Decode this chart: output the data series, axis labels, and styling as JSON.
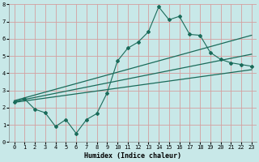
{
  "title": "",
  "xlabel": "Humidex (Indice chaleur)",
  "ylabel": "",
  "bg_color": "#c8e8e8",
  "line_color": "#1a6b5a",
  "grid_color": "#d4a0a0",
  "xlim": [
    -0.5,
    23.5
  ],
  "ylim": [
    0,
    8
  ],
  "xticks": [
    0,
    1,
    2,
    3,
    4,
    5,
    6,
    7,
    8,
    9,
    10,
    11,
    12,
    13,
    14,
    15,
    16,
    17,
    18,
    19,
    20,
    21,
    22,
    23
  ],
  "yticks": [
    0,
    1,
    2,
    3,
    4,
    5,
    6,
    7,
    8
  ],
  "jagged_x": [
    0,
    1,
    2,
    3,
    4,
    5,
    6,
    7,
    8,
    9,
    10,
    11,
    12,
    13,
    14,
    15,
    16,
    17,
    18,
    19,
    20,
    21,
    22,
    23
  ],
  "jagged_y": [
    2.3,
    2.5,
    1.9,
    1.7,
    0.9,
    1.3,
    0.5,
    1.3,
    1.65,
    2.85,
    4.7,
    5.45,
    5.8,
    6.4,
    7.85,
    7.1,
    7.3,
    6.25,
    6.2,
    5.2,
    4.8,
    4.6,
    4.5,
    4.4
  ],
  "trend1_x": [
    0,
    23
  ],
  "trend1_y": [
    2.3,
    4.2
  ],
  "trend2_x": [
    0,
    23
  ],
  "trend2_y": [
    2.4,
    6.2
  ],
  "trend3_x": [
    0,
    23
  ],
  "trend3_y": [
    2.35,
    5.1
  ]
}
